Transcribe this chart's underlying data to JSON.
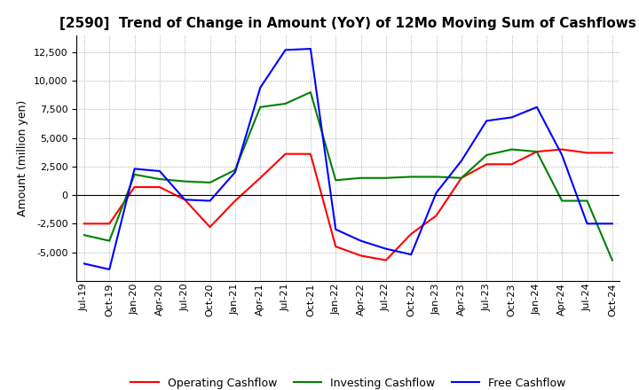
{
  "title": "[2590]  Trend of Change in Amount (YoY) of 12Mo Moving Sum of Cashflows",
  "ylabel": "Amount (million yen)",
  "x_labels": [
    "Jul-19",
    "Oct-19",
    "Jan-20",
    "Apr-20",
    "Jul-20",
    "Oct-20",
    "Jan-21",
    "Apr-21",
    "Jul-21",
    "Oct-21",
    "Jan-22",
    "Apr-22",
    "Jul-22",
    "Oct-22",
    "Jan-23",
    "Apr-23",
    "Jul-23",
    "Oct-23",
    "Jan-24",
    "Apr-24",
    "Jul-24",
    "Oct-24"
  ],
  "operating": [
    -2500,
    -2500,
    700,
    700,
    -400,
    -2800,
    -500,
    1500,
    3600,
    3600,
    -4500,
    -5300,
    -5700,
    -3400,
    -1800,
    1500,
    2700,
    2700,
    3800,
    4000,
    3700,
    3700
  ],
  "investing": [
    -3500,
    -4000,
    1800,
    1400,
    1200,
    1100,
    2200,
    7700,
    8000,
    9000,
    1300,
    1500,
    1500,
    1600,
    1600,
    1500,
    3500,
    4000,
    3800,
    -500,
    -500,
    -5700
  ],
  "free": [
    -6000,
    -6500,
    2300,
    2100,
    -400,
    -500,
    2000,
    9400,
    12700,
    12800,
    -3000,
    -4000,
    -4700,
    -5200,
    200,
    3000,
    6500,
    6800,
    7700,
    3500,
    -2500,
    -2500
  ],
  "operating_color": "#ff0000",
  "investing_color": "#008000",
  "free_color": "#0000ff",
  "ylim": [
    -7500,
    14000
  ],
  "yticks": [
    -5000,
    -2500,
    0,
    2500,
    5000,
    7500,
    10000,
    12500
  ],
  "title_fontsize": 11,
  "axis_fontsize": 9,
  "tick_fontsize": 8,
  "legend_fontsize": 9,
  "background_color": "#ffffff",
  "grid_color": "#999999"
}
